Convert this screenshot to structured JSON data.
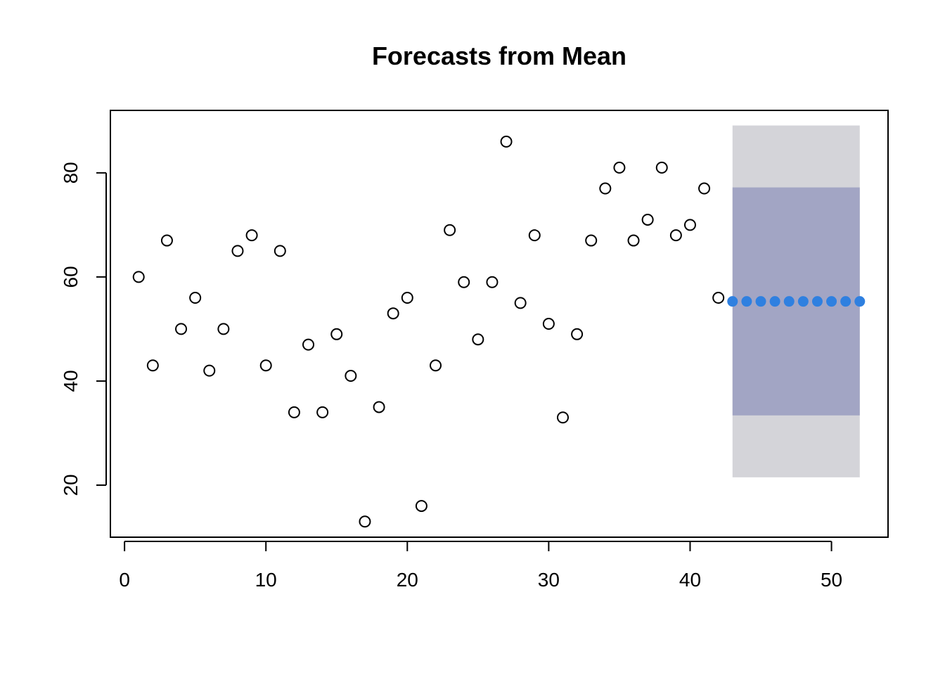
{
  "chart_data": {
    "type": "scatter",
    "title": "Forecasts from Mean",
    "xlabel": "",
    "ylabel": "",
    "xlim": [
      -1,
      54
    ],
    "ylim": [
      10,
      92
    ],
    "xticks": [
      0,
      10,
      20,
      30,
      40,
      50
    ],
    "yticks": [
      20,
      40,
      60,
      80
    ],
    "grid": false,
    "legend": "none",
    "colors": {
      "observed_stroke": "#000000",
      "forecast_point": "#2F80E0",
      "interval_80": "#A2A5C4",
      "interval_95": "#D4D4D9"
    },
    "observed": {
      "x": [
        1,
        2,
        3,
        4,
        5,
        6,
        7,
        8,
        9,
        10,
        11,
        12,
        13,
        14,
        15,
        16,
        17,
        18,
        19,
        20,
        21,
        22,
        23,
        24,
        25,
        26,
        27,
        28,
        29,
        30,
        31,
        32,
        33,
        34,
        35,
        36,
        37,
        38,
        39,
        40,
        41,
        42
      ],
      "y": [
        60,
        43,
        67,
        50,
        56,
        42,
        50,
        65,
        68,
        43,
        65,
        34,
        47,
        34,
        49,
        41,
        13,
        35,
        53,
        56,
        16,
        43,
        69,
        59,
        48,
        59,
        86,
        55,
        68,
        51,
        33,
        49,
        67,
        77,
        81,
        67,
        71,
        81,
        68,
        70,
        77,
        56
      ]
    },
    "forecast": {
      "x": [
        43,
        44,
        45,
        46,
        47,
        48,
        49,
        50,
        51,
        52
      ],
      "mean": [
        55.3,
        55.3,
        55.3,
        55.3,
        55.3,
        55.3,
        55.3,
        55.3,
        55.3,
        55.3
      ],
      "interval_80": [
        33.4,
        77.2
      ],
      "interval_95": [
        21.5,
        89.1
      ]
    }
  }
}
